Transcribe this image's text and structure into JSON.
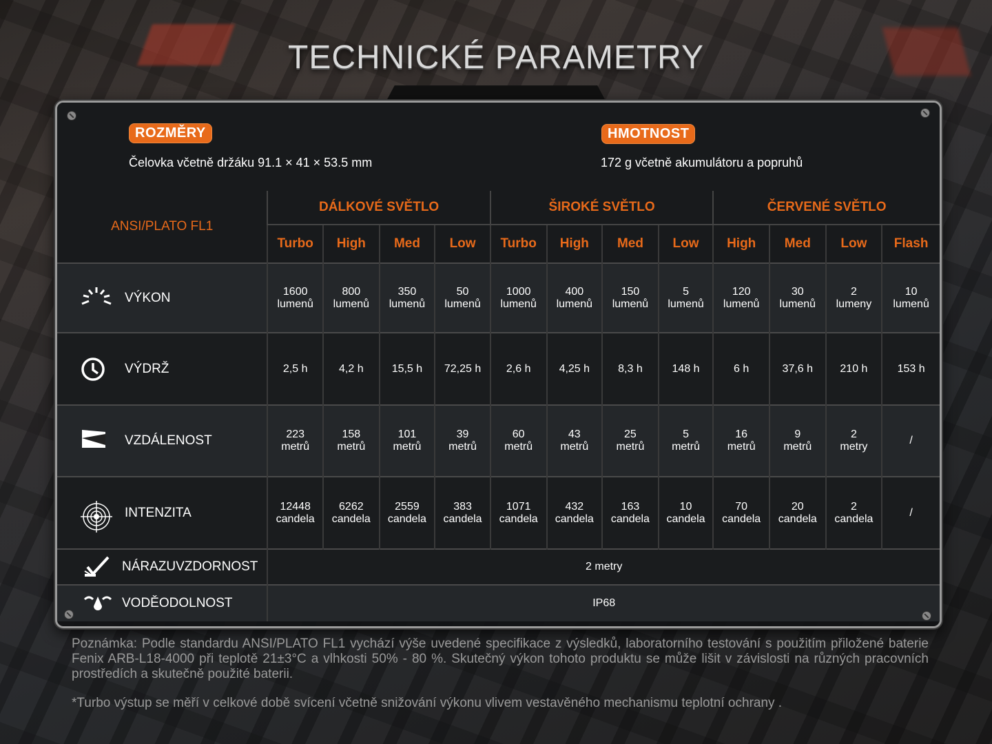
{
  "title": "TECHNICKÉ PARAMETRY",
  "dimensions": {
    "label": "ROZMĚRY",
    "value": "Čelovka včetně držáku 91.1 × 41 × 53.5 mm"
  },
  "weight": {
    "label": "HMOTNOST",
    "value": "172 g včetně akumulátoru a popruhů"
  },
  "table": {
    "standard": "ANSI/PLATO FL1",
    "groups": [
      "DÁLKOVÉ SVĚTLO",
      "ŠIROKÉ SVĚTLO",
      "ČERVENÉ SVĚTLO"
    ],
    "modes": [
      "Turbo",
      "High",
      "Med",
      "Low",
      "Turbo",
      "High",
      "Med",
      "Low",
      "High",
      "Med",
      "Low",
      "Flash"
    ],
    "rows": [
      {
        "label": "VÝKON",
        "icon": "light-burst-icon",
        "cells": [
          [
            "1600",
            "lumenů"
          ],
          [
            "800",
            "lumenů"
          ],
          [
            "350",
            "lumenů"
          ],
          [
            "50",
            "lumenů"
          ],
          [
            "1000",
            "lumenů"
          ],
          [
            "400",
            "lumenů"
          ],
          [
            "150",
            "lumenů"
          ],
          [
            "5",
            "lumenů"
          ],
          [
            "120",
            "lumenů"
          ],
          [
            "30",
            "lumenů"
          ],
          [
            "2",
            "lumeny"
          ],
          [
            "10",
            "lumenů"
          ]
        ]
      },
      {
        "label": "VÝDRŽ",
        "icon": "clock-icon",
        "cells": [
          [
            "2,5 h",
            ""
          ],
          [
            "4,2 h",
            ""
          ],
          [
            "15,5 h",
            ""
          ],
          [
            "72,25 h",
            ""
          ],
          [
            "2,6 h",
            ""
          ],
          [
            "4,25 h",
            ""
          ],
          [
            "8,3 h",
            ""
          ],
          [
            "148 h",
            ""
          ],
          [
            "6 h",
            ""
          ],
          [
            "37,6 h",
            ""
          ],
          [
            "210 h",
            ""
          ],
          [
            "153 h",
            ""
          ]
        ]
      },
      {
        "label": "VZDÁLENOST",
        "icon": "beam-distance-icon",
        "cells": [
          [
            "223",
            "metrů"
          ],
          [
            "158",
            "metrů"
          ],
          [
            "101",
            "metrů"
          ],
          [
            "39",
            "metrů"
          ],
          [
            "60",
            "metrů"
          ],
          [
            "43",
            "metrů"
          ],
          [
            "25",
            "metrů"
          ],
          [
            "5",
            "metrů"
          ],
          [
            "16",
            "metrů"
          ],
          [
            "9",
            "metrů"
          ],
          [
            "2",
            "metry"
          ],
          [
            "/",
            ""
          ]
        ]
      },
      {
        "label": "INTENZITA",
        "icon": "target-icon",
        "cells": [
          [
            "12448",
            "candela"
          ],
          [
            "6262",
            "candela"
          ],
          [
            "2559",
            "candela"
          ],
          [
            "383",
            "candela"
          ],
          [
            "1071",
            "candela"
          ],
          [
            "432",
            "candela"
          ],
          [
            "163",
            "candela"
          ],
          [
            "10",
            "candela"
          ],
          [
            "70",
            "candela"
          ],
          [
            "20",
            "candela"
          ],
          [
            "2",
            "candela"
          ],
          [
            "/",
            ""
          ]
        ]
      }
    ],
    "impact": {
      "label": "NÁRAZUVZDORNOST",
      "icon": "impact-icon",
      "value": "2 metry"
    },
    "water": {
      "label": "VODĚODOLNOST",
      "icon": "water-drop-icon",
      "value": "IP68"
    }
  },
  "note": "Poznámka: Podle standardu ANSI/PLATO FL1 vychází výše uvedené specifikace z výsledků, laboratorního testování s použitím přiložené baterie Fenix ARB-L18-4000 při teplotě 21±3°C a vlhkosti 50% - 80 %. Skutečný výkon tohoto produktu se může lišit v závislosti na různých pracovních prostředích a skutečně použité baterii.",
  "note2": "*Turbo výstup se měří v celkové době svícení včetně snižování výkonu vlivem vestavěného mechanismu teplotní ochrany .",
  "colors": {
    "accent": "#e86a1a",
    "panel": "#181a1c"
  }
}
